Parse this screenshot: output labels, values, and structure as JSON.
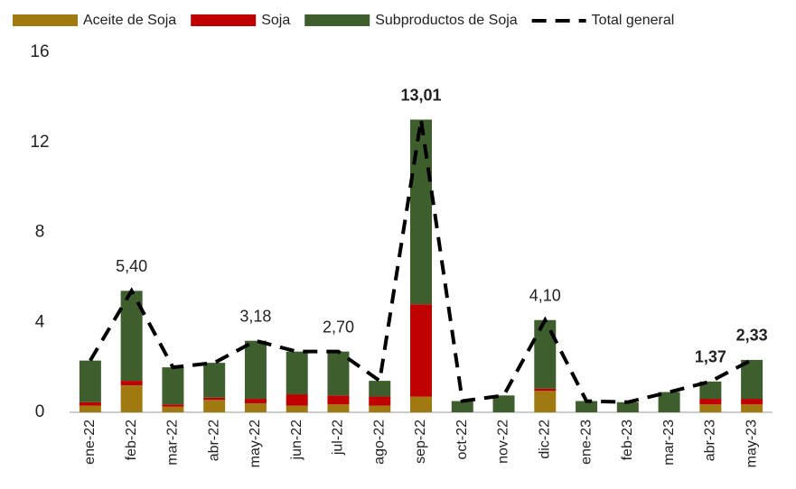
{
  "chart_data": {
    "type": "bar",
    "categories": [
      "ene-22",
      "feb-22",
      "mar-22",
      "abr-22",
      "may-22",
      "jun-22",
      "jul-22",
      "ago-22",
      "sep-22",
      "oct-22",
      "nov-22",
      "dic-22",
      "ene-23",
      "feb-23",
      "mar-23",
      "abr-23",
      "may-23"
    ],
    "stacked": true,
    "series": [
      {
        "name": "Aceite de Soja",
        "color": "#a07a10",
        "values": [
          0.3,
          1.2,
          0.25,
          0.55,
          0.4,
          0.3,
          0.35,
          0.3,
          0.7,
          0,
          0,
          0.95,
          0,
          0,
          0,
          0.35,
          0.35
        ]
      },
      {
        "name": "Soja",
        "color": "#c00000",
        "values": [
          0.15,
          0.2,
          0.1,
          0.1,
          0.2,
          0.5,
          0.4,
          0.4,
          4.1,
          0,
          0,
          0.1,
          0,
          0,
          0,
          0.25,
          0.25
        ]
      },
      {
        "name": "Subproductos de Soja",
        "color": "#3e5e2e",
        "values": [
          1.85,
          4.0,
          1.65,
          1.55,
          2.58,
          1.9,
          1.95,
          0.7,
          8.21,
          0.5,
          0.75,
          3.05,
          0.5,
          0.45,
          0.9,
          0.77,
          1.73
        ]
      },
      {
        "name": "Total general",
        "type": "line",
        "color": "#000000",
        "dashed": true,
        "values": [
          2.3,
          5.4,
          2.0,
          2.2,
          3.18,
          2.7,
          2.7,
          1.4,
          13.01,
          0.5,
          0.75,
          4.1,
          0.5,
          0.45,
          0.9,
          1.37,
          2.33
        ],
        "value_labels": [
          null,
          "5,40",
          null,
          null,
          "3,18",
          null,
          "2,70",
          null,
          "13,01",
          null,
          null,
          "4,10",
          null,
          null,
          null,
          "1,37",
          "2,33"
        ],
        "value_label_bold": [
          false,
          false,
          false,
          false,
          false,
          false,
          false,
          false,
          true,
          false,
          false,
          false,
          false,
          false,
          false,
          true,
          true
        ]
      }
    ],
    "ylim": [
      0,
      16
    ],
    "yticks": [
      0,
      4,
      8,
      12,
      16
    ],
    "grid": false,
    "legend": "top"
  }
}
